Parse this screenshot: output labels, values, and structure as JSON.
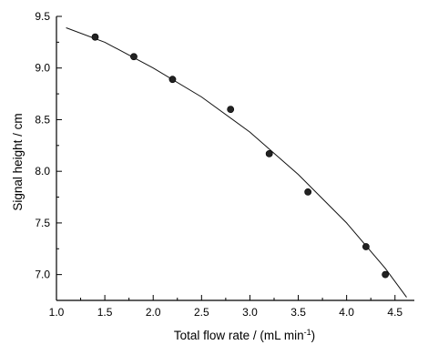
{
  "chart_data": {
    "type": "scatter",
    "title": "",
    "xlabel": "Total flow rate / (mL min",
    "xlabel_sup": "-1",
    "xlabel_close": ")",
    "ylabel": "Signal height / cm",
    "xlim": [
      1.0,
      4.7
    ],
    "ylim": [
      6.75,
      9.5
    ],
    "xticks": [
      1.0,
      1.5,
      2.0,
      2.5,
      3.0,
      3.5,
      4.0,
      4.5
    ],
    "xtick_labels": [
      "1.0",
      "1.5",
      "2.0",
      "2.5",
      "3.0",
      "3.5",
      "4.0",
      "4.5"
    ],
    "yticks": [
      7.0,
      7.5,
      8.0,
      8.5,
      9.0,
      9.5
    ],
    "ytick_labels": [
      "7.0",
      "7.5",
      "8.0",
      "8.5",
      "9.0",
      "9.5"
    ],
    "grid": false,
    "series": [
      {
        "kind": "points",
        "x": [
          1.4,
          1.8,
          2.2,
          2.8,
          3.2,
          3.6,
          4.2,
          4.4
        ],
        "y": [
          9.3,
          9.11,
          8.89,
          8.6,
          8.17,
          7.8,
          7.27,
          7.0
        ]
      },
      {
        "kind": "fit-curve",
        "x": [
          1.1,
          1.5,
          2.0,
          2.5,
          3.0,
          3.5,
          4.0,
          4.4,
          4.62
        ],
        "y": [
          9.39,
          9.25,
          9.0,
          8.72,
          8.38,
          7.97,
          7.5,
          7.06,
          6.78
        ]
      }
    ]
  }
}
